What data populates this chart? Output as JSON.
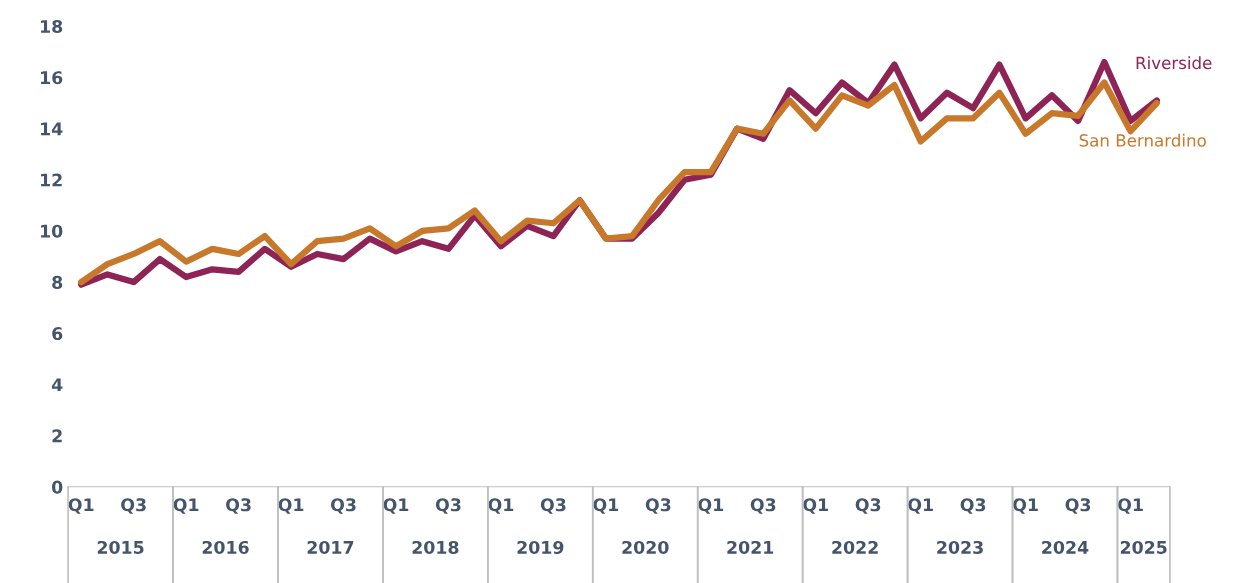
{
  "chart_data": {
    "type": "line",
    "categories": [
      "Q1",
      null,
      "Q3",
      null,
      "Q1",
      null,
      "Q3",
      null,
      "Q1",
      null,
      "Q3",
      null,
      "Q1",
      null,
      "Q3",
      null,
      "Q1",
      null,
      "Q3",
      null,
      "Q1",
      null,
      "Q3",
      null,
      "Q1",
      null,
      "Q3",
      null,
      "Q1",
      null,
      "Q3",
      null,
      "Q1",
      null,
      "Q3",
      null,
      "Q1",
      null,
      "Q3",
      null,
      "Q1",
      null
    ],
    "series": [
      {
        "name": "Riverside",
        "color": "#8e2356",
        "values": [
          7.9,
          8.3,
          8.0,
          8.9,
          8.2,
          8.5,
          8.4,
          9.3,
          8.6,
          9.1,
          8.9,
          9.7,
          9.2,
          9.6,
          9.3,
          10.6,
          9.4,
          10.2,
          9.8,
          11.2,
          9.7,
          9.7,
          10.7,
          12.0,
          12.2,
          14.0,
          13.6,
          15.5,
          14.6,
          15.8,
          15.0,
          16.5,
          14.4,
          15.4,
          14.8,
          16.5,
          14.4,
          15.3,
          14.3,
          16.6,
          14.3,
          15.1
        ]
      },
      {
        "name": "San Bernardino",
        "color": "#c8782a",
        "values": [
          8.0,
          8.7,
          9.1,
          9.6,
          8.8,
          9.3,
          9.1,
          9.8,
          8.7,
          9.6,
          9.7,
          10.1,
          9.4,
          10.0,
          10.1,
          10.8,
          9.6,
          10.4,
          10.3,
          11.2,
          9.7,
          9.8,
          11.2,
          12.3,
          12.3,
          14.0,
          13.8,
          15.1,
          14.0,
          15.3,
          14.9,
          15.7,
          13.5,
          14.4,
          14.4,
          15.4,
          13.8,
          14.6,
          14.5,
          15.8,
          13.9,
          15.0
        ]
      }
    ],
    "annotations": [
      "2015",
      "2016",
      "2017",
      "2018",
      "2019",
      "2020",
      "2021",
      "2022",
      "2023",
      "2024",
      "2025"
    ],
    "ylim": [
      0,
      18
    ],
    "yticks": [
      0,
      2,
      4,
      6,
      8,
      10,
      12,
      14,
      16,
      18
    ],
    "grid": false,
    "legend": false,
    "marker": "none",
    "line_style": "solid"
  }
}
